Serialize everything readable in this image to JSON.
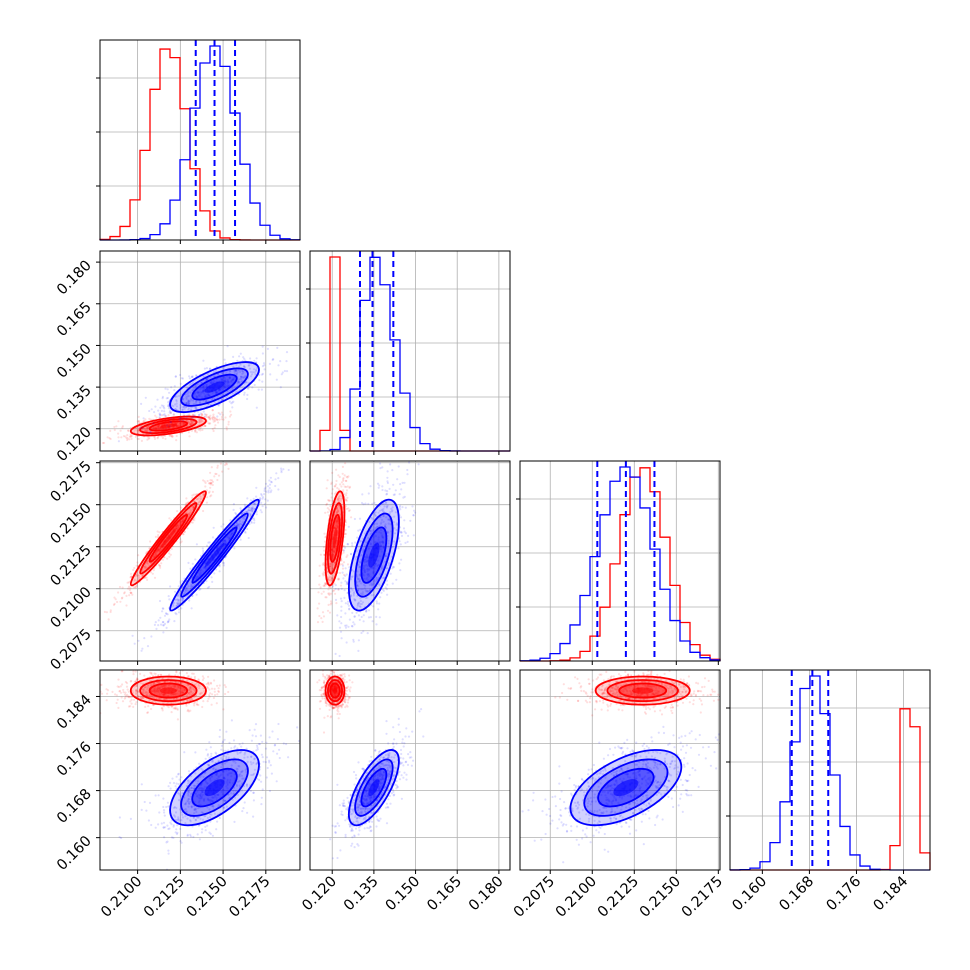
{
  "chart_data": {
    "type": "corner",
    "grid": true,
    "title": "",
    "series_colors": {
      "red": "#ff0000",
      "blue": "#0000ff"
    },
    "parameters": [
      {
        "index": 0,
        "range": [
          0.2078,
          0.2195
        ],
        "ticks": [
          "0.2100",
          "0.2125",
          "0.2150",
          "0.2175"
        ]
      },
      {
        "index": 1,
        "range": [
          0.112,
          0.184
        ],
        "ticks": [
          "0.120",
          "0.135",
          "0.150",
          "0.165",
          "0.180"
        ]
      },
      {
        "index": 2,
        "range": [
          0.2057,
          0.2176
        ],
        "ticks": [
          "0.2075",
          "0.2100",
          "0.2125",
          "0.2150",
          "0.2175"
        ]
      },
      {
        "index": 3,
        "range": [
          0.1545,
          0.1885
        ],
        "ticks": [
          "0.160",
          "0.168",
          "0.176",
          "0.184"
        ]
      }
    ],
    "series": [
      {
        "color": "red",
        "means": [
          0.2118,
          0.121,
          0.213,
          0.185
        ],
        "sigmas": [
          0.0011,
          0.0017,
          0.0014,
          0.0012
        ],
        "correlations": [
          [
            0,
            1,
            0.55
          ],
          [
            0,
            2,
            0.97
          ],
          [
            1,
            2,
            0.55
          ],
          [
            0,
            3,
            0.0
          ],
          [
            1,
            3,
            0.0
          ],
          [
            2,
            3,
            0.0
          ]
        ],
        "hist_tail": [
          1
        ]
      },
      {
        "color": "blue",
        "means": [
          0.2145,
          0.135,
          0.212,
          0.1685
        ],
        "sigmas": [
          0.0013,
          0.0045,
          0.00165,
          0.0032
        ],
        "correlations": [
          [
            0,
            1,
            0.7
          ],
          [
            0,
            2,
            0.97
          ],
          [
            1,
            2,
            0.6
          ],
          [
            0,
            3,
            0.6
          ],
          [
            1,
            3,
            0.7
          ],
          [
            2,
            3,
            0.55
          ]
        ],
        "hist_tail": [
          1
        ]
      }
    ],
    "quantile_lines": {
      "color": "blue",
      "values": [
        [
          0.2134,
          0.2145,
          0.2157
        ],
        [
          0.13,
          0.1345,
          0.142
        ],
        [
          0.2103,
          0.212,
          0.2137
        ],
        [
          0.165,
          0.1685,
          0.1712
        ]
      ]
    }
  }
}
